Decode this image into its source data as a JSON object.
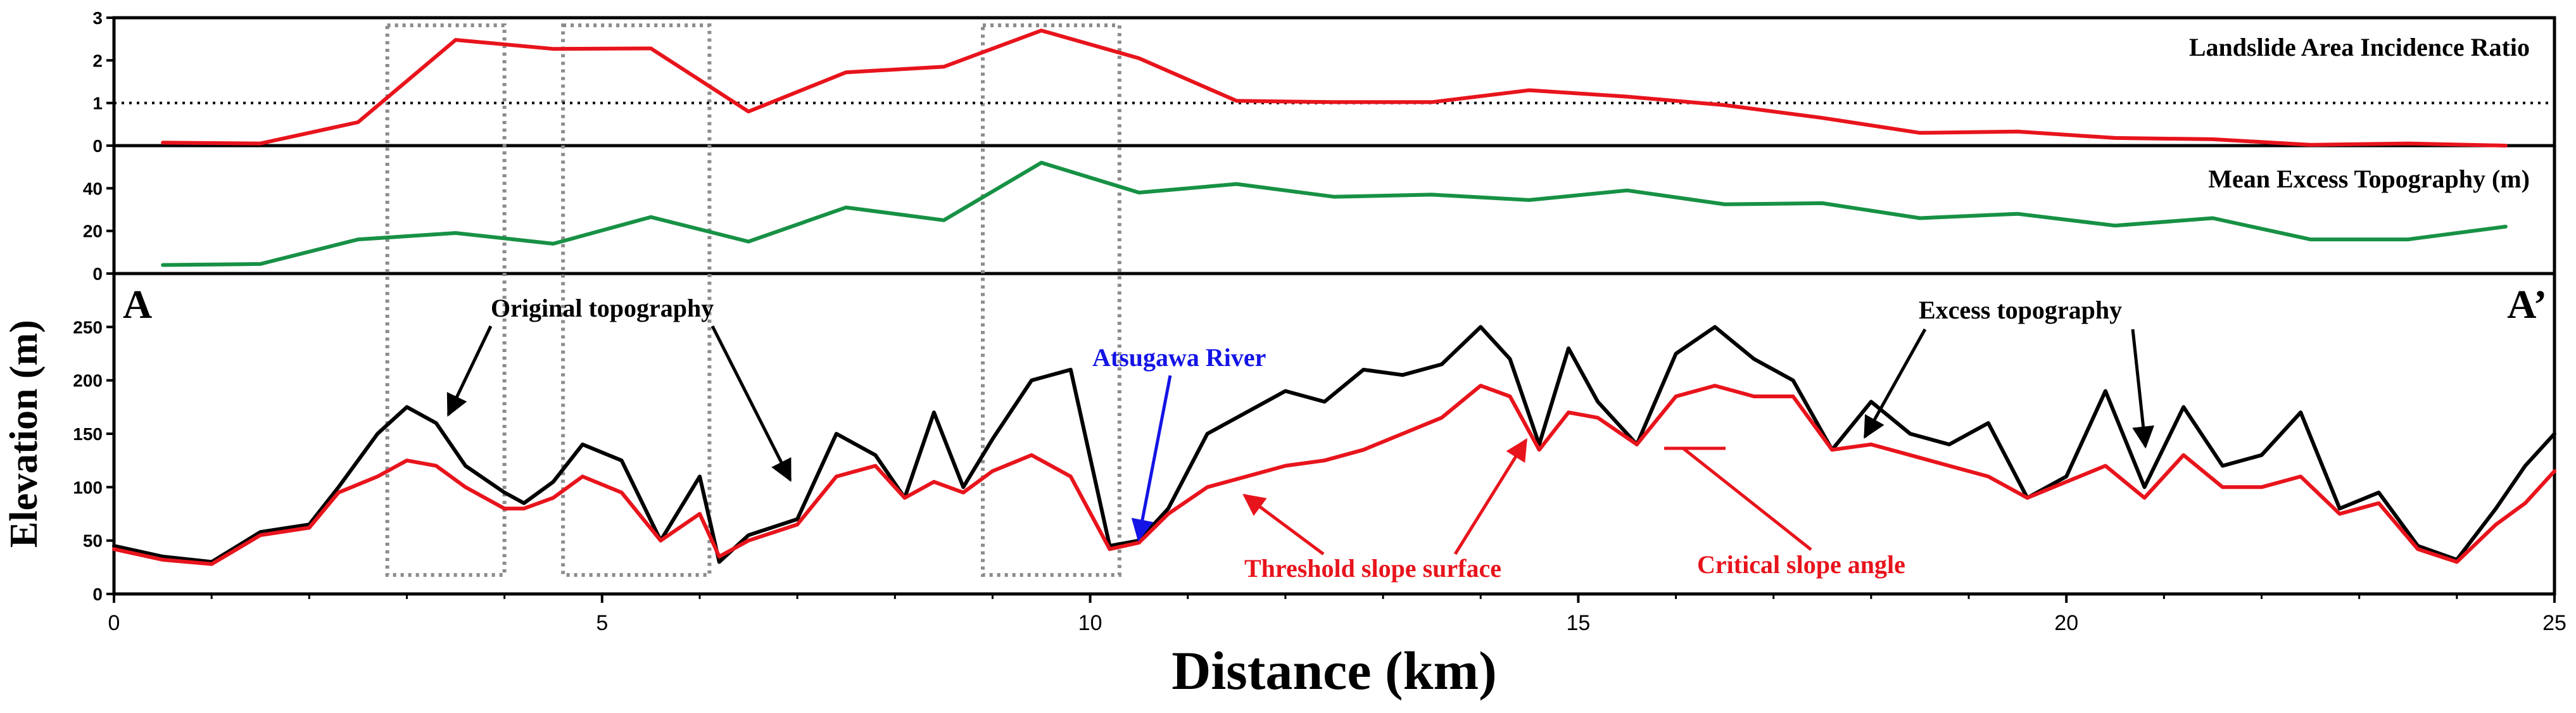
{
  "chart_data": [
    {
      "type": "line",
      "panel": "top",
      "title": "Landslide Area Incidence Ratio",
      "xlim": [
        0,
        25
      ],
      "ylim": [
        0,
        3
      ],
      "yticks": [
        0,
        1,
        2,
        3
      ],
      "reference_line": 1,
      "series": [
        {
          "name": "Landslide Area Incidence Ratio",
          "color": "#e8141c",
          "x": [
            0.5,
            1.5,
            2.5,
            3.5,
            4.5,
            5.5,
            6.5,
            7.5,
            8.5,
            9.5,
            10.5,
            11.5,
            12.5,
            13.5,
            14.5,
            15.5,
            16.5,
            17.5,
            18.5,
            19.5,
            20.5,
            21.5,
            22.5,
            23.5,
            24.5
          ],
          "values": [
            0.07,
            0.05,
            0.55,
            2.48,
            2.27,
            2.28,
            0.8,
            1.72,
            1.85,
            2.7,
            2.05,
            1.05,
            1.02,
            1.02,
            1.3,
            1.15,
            0.95,
            0.65,
            0.3,
            0.33,
            0.18,
            0.15,
            0.02,
            0.05,
            0.0
          ]
        }
      ]
    },
    {
      "type": "line",
      "panel": "middle",
      "title": "Mean Excess Topography (m)",
      "xlim": [
        0,
        25
      ],
      "ylim": [
        0,
        60
      ],
      "yticks": [
        0,
        20,
        40
      ],
      "series": [
        {
          "name": "Mean Excess Topography (m)",
          "color": "#179145",
          "x": [
            0.5,
            1.5,
            2.5,
            3.5,
            4.5,
            5.5,
            6.5,
            7.5,
            8.5,
            9.5,
            10.5,
            11.5,
            12.5,
            13.5,
            14.5,
            15.5,
            16.5,
            17.5,
            18.5,
            19.5,
            20.5,
            21.5,
            22.5,
            23.5,
            24.5
          ],
          "values": [
            4,
            4.5,
            16,
            19,
            14,
            26.5,
            15,
            31,
            25,
            52,
            38,
            42,
            36,
            37,
            34.5,
            39,
            32.5,
            33,
            26,
            28,
            22.5,
            26,
            16,
            16,
            22
          ]
        }
      ]
    },
    {
      "type": "line",
      "panel": "bottom",
      "title": "",
      "xlabel": "Distance (km)",
      "ylabel": "Elevation (m)",
      "xlim": [
        0,
        25
      ],
      "ylim": [
        0,
        300
      ],
      "xticks": [
        0,
        5,
        10,
        15,
        20,
        25
      ],
      "yticks": [
        0,
        50,
        100,
        150,
        200,
        250
      ],
      "profile_labels": {
        "start": "A",
        "end": "A’"
      },
      "series": [
        {
          "name": "Original topography",
          "color": "#000000",
          "x": [
            0,
            0.5,
            1,
            1.5,
            2,
            2.3,
            2.7,
            3,
            3.3,
            3.6,
            4,
            4.2,
            4.5,
            4.8,
            5.2,
            5.6,
            6,
            6.2,
            6.5,
            7,
            7.4,
            7.8,
            8.1,
            8.4,
            8.7,
            9,
            9.4,
            9.8,
            10.2,
            10.5,
            10.8,
            11.2,
            11.6,
            12,
            12.4,
            12.8,
            13.2,
            13.6,
            14,
            14.3,
            14.6,
            14.9,
            15.2,
            15.6,
            16,
            16.4,
            16.8,
            17.2,
            17.6,
            18,
            18.4,
            18.8,
            19.2,
            19.6,
            20,
            20.4,
            20.8,
            21.2,
            21.6,
            22,
            22.4,
            22.8,
            23.2,
            23.6,
            24,
            24.4,
            24.7,
            25
          ],
          "values": [
            45,
            35,
            30,
            58,
            65,
            100,
            150,
            175,
            160,
            120,
            95,
            85,
            105,
            140,
            125,
            50,
            110,
            30,
            55,
            70,
            150,
            130,
            90,
            170,
            100,
            145,
            200,
            210,
            45,
            50,
            80,
            150,
            170,
            190,
            180,
            210,
            205,
            215,
            250,
            220,
            140,
            230,
            180,
            140,
            225,
            250,
            220,
            200,
            135,
            180,
            150,
            140,
            160,
            90,
            110,
            190,
            100,
            175,
            120,
            130,
            170,
            80,
            95,
            45,
            32,
            80,
            120,
            150
          ]
        },
        {
          "name": "Threshold slope surface",
          "color": "#e8141c",
          "x": [
            0,
            0.5,
            1,
            1.5,
            2,
            2.3,
            2.7,
            3,
            3.3,
            3.6,
            4,
            4.2,
            4.5,
            4.8,
            5.2,
            5.6,
            6,
            6.2,
            6.5,
            7,
            7.4,
            7.8,
            8.1,
            8.4,
            8.7,
            9,
            9.4,
            9.8,
            10.2,
            10.5,
            10.8,
            11.2,
            11.6,
            12,
            12.4,
            12.8,
            13.2,
            13.6,
            14,
            14.3,
            14.6,
            14.9,
            15.2,
            15.6,
            16,
            16.4,
            16.8,
            17.2,
            17.6,
            18,
            18.4,
            18.8,
            19.2,
            19.6,
            20,
            20.4,
            20.8,
            21.2,
            21.6,
            22,
            22.4,
            22.8,
            23.2,
            23.6,
            24,
            24.4,
            24.7,
            25
          ],
          "values": [
            42,
            32,
            28,
            55,
            62,
            95,
            110,
            125,
            120,
            100,
            80,
            80,
            90,
            110,
            95,
            50,
            75,
            35,
            50,
            65,
            110,
            120,
            90,
            105,
            95,
            115,
            130,
            110,
            42,
            48,
            75,
            100,
            110,
            120,
            125,
            135,
            150,
            165,
            195,
            185,
            135,
            170,
            165,
            140,
            185,
            195,
            185,
            185,
            135,
            140,
            130,
            120,
            110,
            90,
            105,
            120,
            90,
            130,
            100,
            100,
            110,
            75,
            85,
            42,
            30,
            65,
            85,
            115
          ]
        }
      ],
      "annotations": [
        {
          "text": "Original topography",
          "color": "#000000"
        },
        {
          "text": "Excess topography",
          "color": "#000000"
        },
        {
          "text": "Atsugawa River",
          "color": "#1414e6"
        },
        {
          "text": "Threshold slope surface",
          "color": "#e8141c"
        },
        {
          "text": "Critical slope angle",
          "color": "#e8141c"
        }
      ],
      "highlight_ranges_km": [
        [
          2.8,
          4.0
        ],
        [
          4.6,
          6.1
        ],
        [
          8.9,
          10.3
        ]
      ]
    }
  ]
}
